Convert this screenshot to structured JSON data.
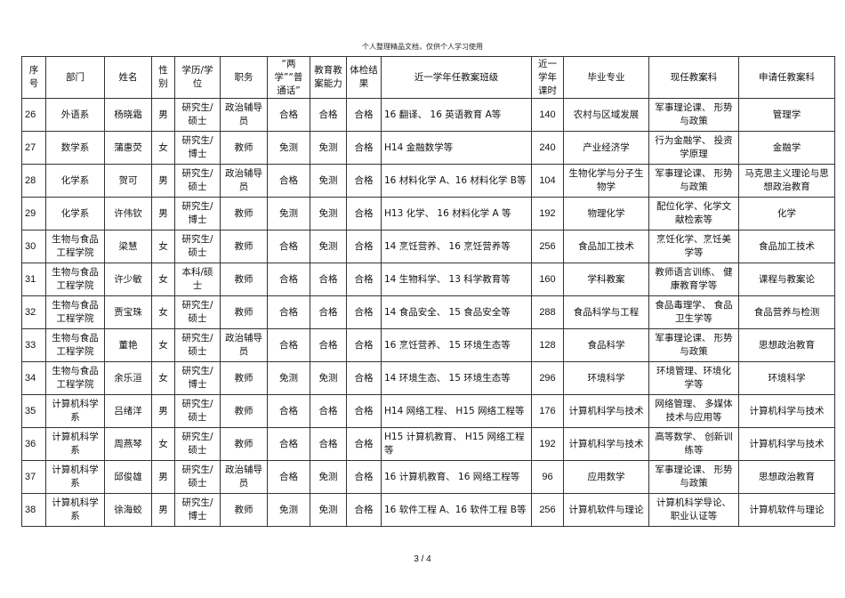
{
  "header_note": "个人整理精品文档，仅供个人学习使用",
  "page_number": "3 / 4",
  "table": {
    "headers": [
      "序号",
      "部门",
      "姓名",
      "性别",
      "学历/学位",
      "职务",
      "“两学”“普通话”",
      "教育教案能力",
      "体检结果",
      "近一学年任教案班级",
      "近一学年课时",
      "毕业专业",
      "现任教案科",
      "申请任教案科"
    ],
    "rows": [
      [
        "26",
        "外语系",
        "杨晓霜",
        "男",
        "研究生/硕士",
        "政治辅导员",
        "合格",
        "合格",
        "合格",
        "16 翻译、 16 英语教育 A等",
        "140",
        "农村与区域发展",
        "军事理论课、 形势与政策",
        "管理学"
      ],
      [
        "27",
        "数学系",
        "蒲惠荧",
        "女",
        "研究生/博士",
        "教师",
        "免测",
        "免测",
        "合格",
        "H14 金融数学等",
        "240",
        "产业经济学",
        "行为金融学、 投资学原理",
        "金融学"
      ],
      [
        "28",
        "化学系",
        "贺可",
        "男",
        "研究生/硕士",
        "政治辅导员",
        "合格",
        "免测",
        "合格",
        "16 材料化学 A、16 材料化学 B等",
        "104",
        "生物化学与分子生物学",
        "军事理论课、 形势与政策",
        "马克思主义理论与思想政治教育"
      ],
      [
        "29",
        "化学系",
        "许伟钦",
        "男",
        "研究生/博士",
        "教师",
        "免测",
        "免测",
        "合格",
        "H13 化学、 16 材料化学 A 等",
        "192",
        "物理化学",
        "配位化学、化学文献检索等",
        "化学"
      ],
      [
        "30",
        "生物与食品工程学院",
        "梁慧",
        "女",
        "研究生/硕士",
        "教师",
        "合格",
        "免测",
        "合格",
        "14 烹饪营养、 16 烹饪营养等",
        "256",
        "食品加工技术",
        "烹饪化学、烹饪美学等",
        "食品加工技术"
      ],
      [
        "31",
        "生物与食品工程学院",
        "许少敏",
        "女",
        "本科/硕士",
        "教师",
        "合格",
        "合格",
        "合格",
        "14 生物科学、 13 科学教育等",
        "160",
        "学科教案",
        "教师语言训练、 健康教育学等",
        "课程与教案论"
      ],
      [
        "32",
        "生物与食品工程学院",
        "贾宝珠",
        "女",
        "研究生/硕士",
        "教师",
        "合格",
        "合格",
        "合格",
        "14 食品安全、 15 食品安全等",
        "288",
        "食品科学与工程",
        "食品毒理学、 食品卫生学等",
        "食品营养与检测"
      ],
      [
        "33",
        "生物与食品工程学院",
        "董艳",
        "女",
        "研究生/硕士",
        "政治辅导员",
        "合格",
        "合格",
        "合格",
        "16 烹饪营养、 15 环境生态等",
        "128",
        "食品科学",
        "军事理论课、 形势与政策",
        "思想政治教育"
      ],
      [
        "34",
        "生物与食品工程学院",
        "余乐洹",
        "女",
        "研究生/博士",
        "教师",
        "免测",
        "免测",
        "合格",
        "14 环境生态、 15 环境生态等",
        "296",
        "环境科学",
        "环境管理、环境化学等",
        "环境科学"
      ],
      [
        "35",
        "计算机科学系",
        "吕绪洋",
        "男",
        "研究生/硕士",
        "教师",
        "合格",
        "合格",
        "合格",
        "H14 网络工程、 H15 网络工程等",
        "176",
        "计算机科学与技术",
        "网络管理、 多媒体技术与应用等",
        "计算机科学与技术"
      ],
      [
        "36",
        "计算机科学系",
        "周燕琴",
        "女",
        "研究生/硕士",
        "教师",
        "合格",
        "合格",
        "合格",
        "H15 计算机教育、 H15 网络工程等",
        "192",
        "计算机科学与技术",
        "高等数学、 创新训练等",
        "计算机科学与技术"
      ],
      [
        "37",
        "计算机科学系",
        "邱俊雄",
        "男",
        "研究生/硕士",
        "政治辅导员",
        "合格",
        "免测",
        "合格",
        "16 计算机教育、 16 网络工程等",
        "96",
        "应用数学",
        "军事理论课、 形势与政策",
        "思想政治教育"
      ],
      [
        "38",
        "计算机科学系",
        "徐海蛟",
        "男",
        "研究生/博士",
        "教师",
        "免测",
        "免测",
        "合格",
        "16 软件工程 A、16 软件工程 B等",
        "256",
        "计算机软件与理论",
        "计算机科学导论、 职业认证等",
        "计算机软件与理论"
      ]
    ]
  }
}
